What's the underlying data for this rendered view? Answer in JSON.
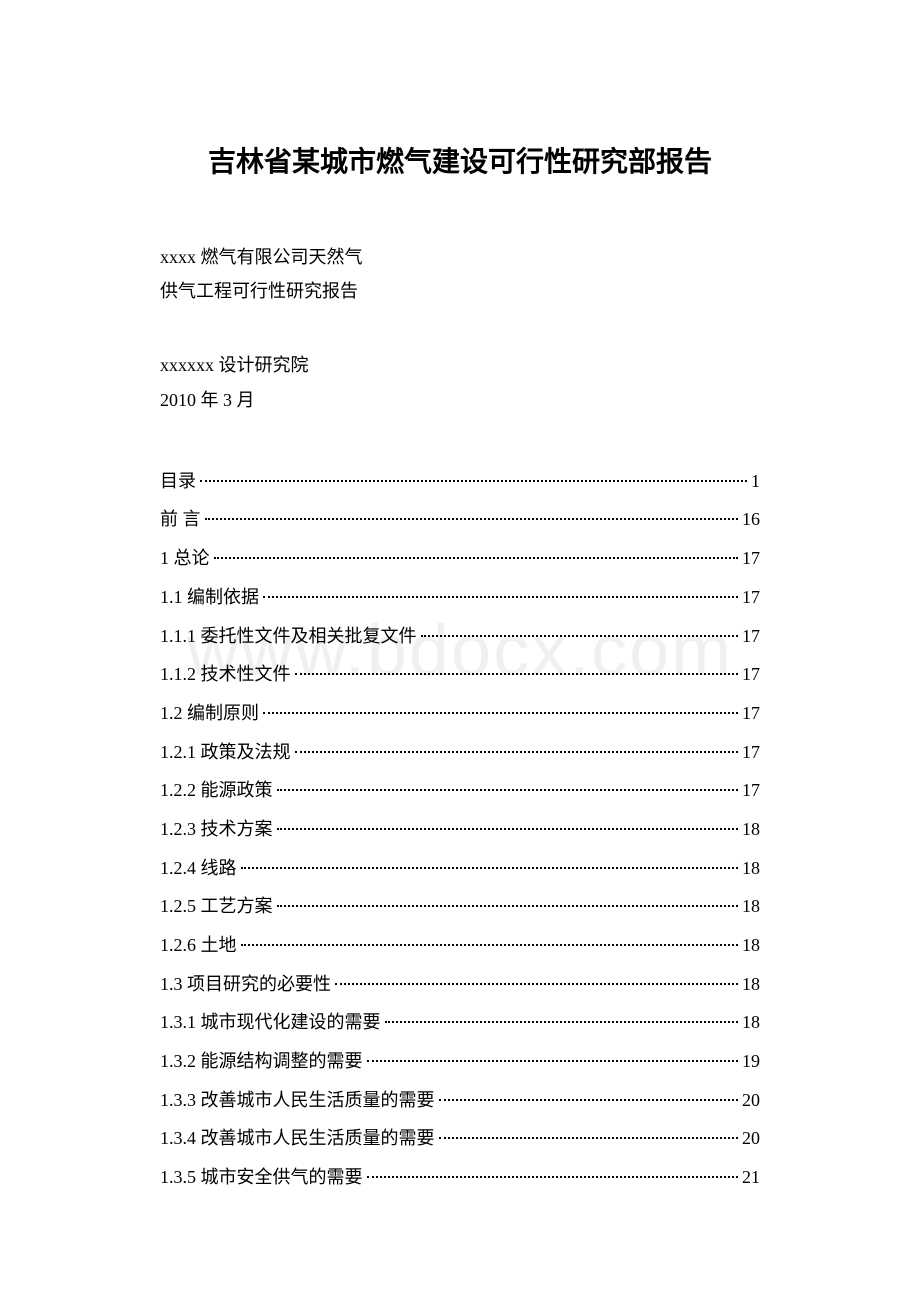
{
  "title": "吉林省某城市燃气建设可行性研究部报告",
  "subtitle": {
    "line1": "xxxx 燃气有限公司天然气",
    "line2": "供气工程可行性研究报告"
  },
  "author": {
    "line1": "xxxxxx 设计研究院",
    "line2": "2010 年 3 月"
  },
  "watermark": "www.bdocx.com",
  "toc": [
    {
      "label": "目录",
      "page": "1"
    },
    {
      "label": "前 言",
      "page": "16"
    },
    {
      "label": "1 总论",
      "page": "17"
    },
    {
      "label": "1.1 编制依据",
      "page": "17"
    },
    {
      "label": "1.1.1 委托性文件及相关批复文件",
      "page": "17"
    },
    {
      "label": "1.1.2 技术性文件",
      "page": "17"
    },
    {
      "label": "1.2 编制原则",
      "page": "17"
    },
    {
      "label": "1.2.1 政策及法规",
      "page": "17"
    },
    {
      "label": "1.2.2 能源政策",
      "page": "17"
    },
    {
      "label": "1.2.3 技术方案",
      "page": "18"
    },
    {
      "label": "1.2.4 线路",
      "page": "18"
    },
    {
      "label": "1.2.5 工艺方案",
      "page": "18"
    },
    {
      "label": "1.2.6 土地",
      "page": "18"
    },
    {
      "label": "1.3 项目研究的必要性",
      "page": "18"
    },
    {
      "label": "1.3.1 城市现代化建设的需要",
      "page": "18"
    },
    {
      "label": "1.3.2 能源结构调整的需要",
      "page": "19"
    },
    {
      "label": "1.3.3 改善城市人民生活质量的需要",
      "page": "20"
    },
    {
      "label": "1.3.4 改善城市人民生活质量的需要",
      "page": "20"
    },
    {
      "label": "1.3.5 城市安全供气的需要",
      "page": "21"
    }
  ]
}
